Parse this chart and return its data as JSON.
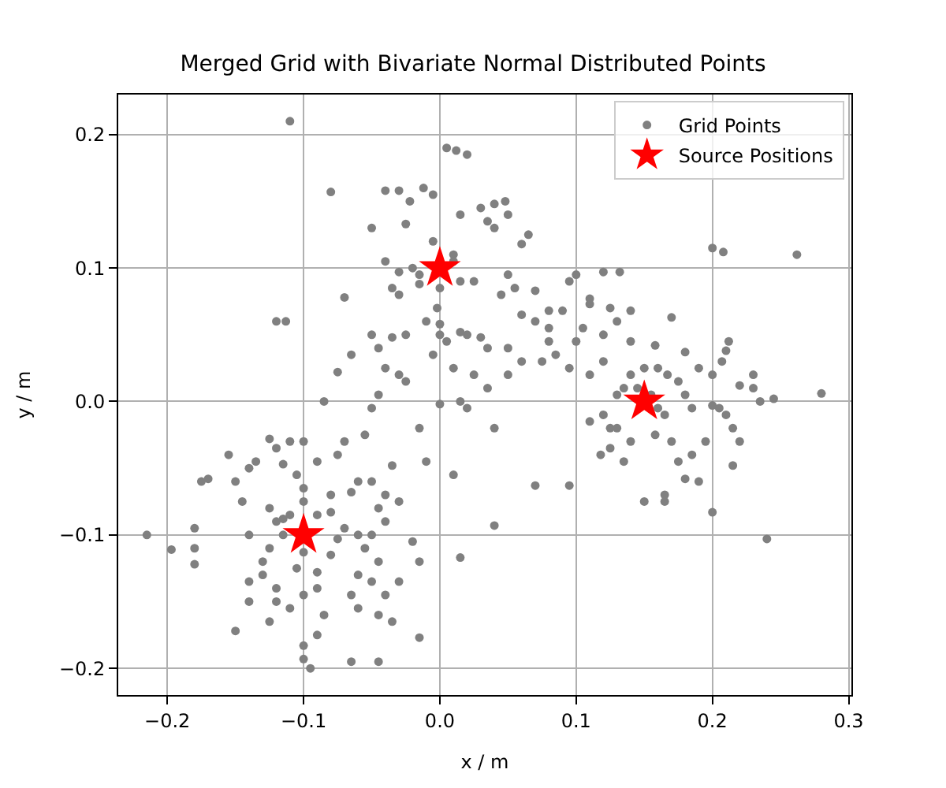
{
  "chart_data": {
    "type": "scatter",
    "title": "Merged Grid with Bivariate Normal Distributed Points",
    "xlabel": "x / m",
    "ylabel": "y / m",
    "xlim": [
      -0.236,
      0.302
    ],
    "ylim": [
      -0.22,
      0.23
    ],
    "xticks": [
      {
        "value": -0.2,
        "label": "−0.2"
      },
      {
        "value": -0.1,
        "label": "−0.1"
      },
      {
        "value": 0.0,
        "label": "0.0"
      },
      {
        "value": 0.1,
        "label": "0.1"
      },
      {
        "value": 0.2,
        "label": "0.2"
      },
      {
        "value": 0.3,
        "label": "0.3"
      }
    ],
    "yticks": [
      {
        "value": -0.2,
        "label": "−0.2"
      },
      {
        "value": -0.1,
        "label": "−0.1"
      },
      {
        "value": 0.0,
        "label": "0.0"
      },
      {
        "value": 0.1,
        "label": "0.1"
      },
      {
        "value": 0.2,
        "label": "0.2"
      }
    ],
    "grid": true,
    "legend": "top right",
    "series": [
      {
        "name": "Grid Points",
        "color": "#808080",
        "marker": "circle",
        "x": [
          -0.11,
          0.005,
          0.012,
          0.02,
          -0.04,
          -0.03,
          -0.08,
          -0.005,
          -0.012,
          -0.022,
          0.03,
          0.04,
          0.048,
          0.05,
          0.06,
          0.065,
          0.035,
          0.04,
          -0.025,
          -0.05,
          0.015,
          -0.005,
          0.01,
          0.01,
          -0.02,
          -0.03,
          -0.015,
          -0.04,
          -0.035,
          -0.03,
          -0.015,
          0.015,
          0.025,
          0.05,
          0.045,
          0.055,
          0.07,
          0.06,
          0.07,
          0.08,
          0.09,
          0.095,
          0.1,
          0.11,
          0.12,
          -0.05,
          -0.045,
          -0.035,
          -0.025,
          -0.01,
          0.0,
          0.0,
          0.005,
          -0.005,
          0.015,
          0.02,
          0.03,
          0.035,
          0.05,
          0.05,
          0.06,
          0.075,
          0.085,
          0.08,
          -0.04,
          -0.03,
          -0.025,
          0.01,
          0.025,
          0.035,
          0.015,
          -0.045,
          -0.085,
          -0.075,
          -0.065,
          -0.07,
          -0.12,
          -0.113,
          0.0,
          0.04,
          0.07,
          0.01,
          0.04,
          0.015,
          -0.035,
          0.02,
          -0.015,
          0.0,
          -0.002,
          0.08,
          0.1,
          0.11,
          0.095,
          0.12,
          0.2,
          0.208,
          0.262,
          0.132,
          0.11,
          0.125,
          0.14,
          0.17,
          0.13,
          0.105,
          0.12,
          0.14,
          0.158,
          0.18,
          0.212,
          0.21,
          0.207,
          0.19,
          0.2,
          0.22,
          0.23,
          0.23,
          0.14,
          0.15,
          0.16,
          0.167,
          0.13,
          0.135,
          0.145,
          0.155,
          0.16,
          0.165,
          0.175,
          0.18,
          0.185,
          0.2,
          0.205,
          0.21,
          0.215,
          0.22,
          0.235,
          0.245,
          0.28,
          0.12,
          0.11,
          0.125,
          0.13,
          0.14,
          0.158,
          0.17,
          0.175,
          0.195,
          0.185,
          0.19,
          0.18,
          0.165,
          0.15,
          0.215,
          0.24,
          0.2,
          0.165,
          0.135,
          0.125,
          0.095,
          0.118,
          -0.215,
          -0.197,
          -0.18,
          -0.18,
          -0.18,
          -0.175,
          -0.17,
          -0.155,
          -0.15,
          -0.145,
          -0.14,
          -0.135,
          -0.125,
          -0.12,
          -0.11,
          -0.115,
          -0.105,
          -0.1,
          -0.125,
          -0.115,
          -0.12,
          -0.11,
          -0.08,
          -0.09,
          -0.14,
          -0.125,
          -0.115,
          -0.13,
          -0.13,
          -0.14,
          -0.12,
          -0.14,
          -0.12,
          -0.11,
          -0.125,
          -0.15,
          -0.1,
          -0.105,
          -0.09,
          -0.09,
          -0.1,
          -0.085,
          -0.1,
          -0.095,
          -0.1,
          -0.045,
          -0.065,
          -0.08,
          -0.075,
          -0.07,
          -0.06,
          -0.055,
          -0.06,
          -0.065,
          -0.05,
          -0.045,
          -0.06,
          -0.05,
          -0.04,
          -0.045,
          -0.04,
          -0.05,
          -0.02,
          -0.015,
          -0.03,
          -0.04,
          -0.045,
          -0.035,
          -0.015,
          -0.075,
          -0.07,
          -0.055,
          -0.05,
          -0.065,
          -0.08,
          -0.1,
          -0.09,
          -0.01,
          -0.03,
          -0.1,
          -0.06,
          -0.09
        ],
        "values": [
          0.21,
          0.19,
          0.188,
          0.185,
          0.158,
          0.158,
          0.157,
          0.155,
          0.16,
          0.15,
          0.145,
          0.148,
          0.15,
          0.14,
          0.118,
          0.125,
          0.135,
          0.13,
          0.133,
          0.13,
          0.14,
          0.12,
          0.11,
          0.105,
          0.1,
          0.097,
          0.095,
          0.105,
          0.085,
          0.08,
          0.088,
          0.09,
          0.09,
          0.095,
          0.08,
          0.085,
          0.083,
          0.065,
          0.06,
          0.068,
          0.068,
          0.09,
          0.095,
          0.073,
          0.097,
          0.05,
          0.04,
          0.048,
          0.05,
          0.06,
          0.058,
          0.05,
          0.045,
          0.035,
          0.052,
          0.05,
          0.048,
          0.04,
          0.04,
          0.02,
          0.03,
          0.03,
          0.035,
          0.045,
          0.025,
          0.02,
          0.015,
          0.025,
          0.02,
          0.01,
          0.0,
          0.005,
          0.0,
          0.022,
          0.035,
          0.078,
          0.06,
          0.06,
          -0.002,
          -0.02,
          -0.063,
          -0.055,
          -0.093,
          -0.117,
          -0.048,
          -0.005,
          -0.02,
          0.085,
          0.07,
          0.055,
          0.045,
          0.02,
          0.025,
          0.03,
          0.115,
          0.112,
          0.11,
          0.097,
          0.077,
          0.07,
          0.068,
          0.063,
          0.06,
          0.055,
          0.05,
          0.045,
          0.042,
          0.037,
          0.045,
          0.038,
          0.03,
          0.025,
          0.02,
          0.012,
          0.02,
          0.01,
          0.02,
          0.025,
          0.025,
          0.02,
          0.005,
          0.01,
          0.01,
          0.005,
          -0.005,
          -0.01,
          0.015,
          0.005,
          -0.005,
          -0.003,
          -0.005,
          -0.01,
          -0.02,
          -0.03,
          0.0,
          0.002,
          0.006,
          -0.01,
          -0.015,
          -0.02,
          -0.02,
          -0.03,
          -0.025,
          -0.03,
          -0.045,
          -0.03,
          -0.04,
          -0.06,
          -0.058,
          -0.07,
          -0.075,
          -0.048,
          -0.103,
          -0.083,
          -0.075,
          -0.045,
          -0.035,
          -0.063,
          -0.04,
          -0.1,
          -0.111,
          -0.095,
          -0.11,
          -0.122,
          -0.06,
          -0.058,
          -0.04,
          -0.06,
          -0.075,
          -0.05,
          -0.045,
          -0.028,
          -0.035,
          -0.03,
          -0.047,
          -0.055,
          -0.065,
          -0.08,
          -0.088,
          -0.09,
          -0.085,
          -0.083,
          -0.085,
          -0.1,
          -0.11,
          -0.1,
          -0.12,
          -0.13,
          -0.135,
          -0.14,
          -0.15,
          -0.15,
          -0.155,
          -0.165,
          -0.172,
          -0.113,
          -0.125,
          -0.128,
          -0.14,
          -0.145,
          -0.16,
          -0.183,
          -0.2,
          -0.193,
          -0.195,
          -0.195,
          -0.115,
          -0.103,
          -0.095,
          -0.1,
          -0.11,
          -0.13,
          -0.145,
          -0.135,
          -0.12,
          -0.06,
          -0.06,
          -0.07,
          -0.08,
          -0.09,
          -0.1,
          -0.105,
          -0.12,
          -0.135,
          -0.145,
          -0.16,
          -0.165,
          -0.177,
          -0.04,
          -0.03,
          -0.025,
          -0.005,
          -0.068,
          -0.07,
          -0.03,
          -0.045,
          -0.045,
          -0.075,
          -0.075,
          -0.155,
          -0.175
        ]
      },
      {
        "name": "Source Positions",
        "color": "#ff0000",
        "marker": "star",
        "x": [
          0.0,
          0.15,
          -0.1
        ],
        "values": [
          0.1,
          0.0,
          -0.1
        ]
      }
    ]
  }
}
